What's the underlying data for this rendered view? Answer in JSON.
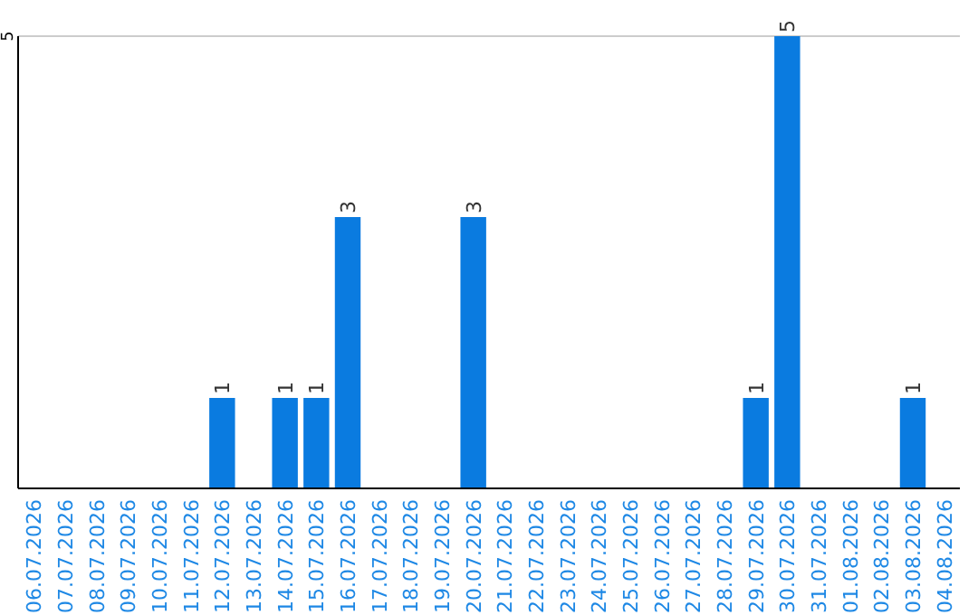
{
  "chart_data": {
    "type": "bar",
    "categories": [
      "06.07.2026",
      "07.07.2026",
      "08.07.2026",
      "09.07.2026",
      "10.07.2026",
      "11.07.2026",
      "12.07.2026",
      "13.07.2026",
      "14.07.2026",
      "15.07.2026",
      "16.07.2026",
      "17.07.2026",
      "18.07.2026",
      "19.07.2026",
      "20.07.2026",
      "21.07.2026",
      "22.07.2026",
      "23.07.2026",
      "24.07.2026",
      "25.07.2026",
      "26.07.2026",
      "27.07.2026",
      "28.07.2026",
      "29.07.2026",
      "30.07.2026",
      "31.07.2026",
      "01.08.2026",
      "02.08.2026",
      "03.08.2026",
      "04.08.2026"
    ],
    "values": [
      0,
      0,
      0,
      0,
      0,
      0,
      1,
      0,
      1,
      1,
      3,
      0,
      0,
      0,
      3,
      0,
      0,
      0,
      0,
      0,
      0,
      0,
      0,
      1,
      5,
      0,
      0,
      0,
      1,
      0
    ],
    "value_labels": [
      null,
      null,
      null,
      null,
      null,
      null,
      "1",
      null,
      "1",
      "1",
      "3",
      null,
      null,
      null,
      "3",
      null,
      null,
      null,
      null,
      null,
      null,
      null,
      null,
      "1",
      "5",
      null,
      null,
      null,
      "1",
      null
    ],
    "color": "#0a7be0",
    "ylim": [
      0,
      5
    ],
    "yticks": [
      5
    ],
    "ref_lines": [
      {
        "axis": "y",
        "value": 5,
        "color": "#cccccc"
      }
    ]
  }
}
